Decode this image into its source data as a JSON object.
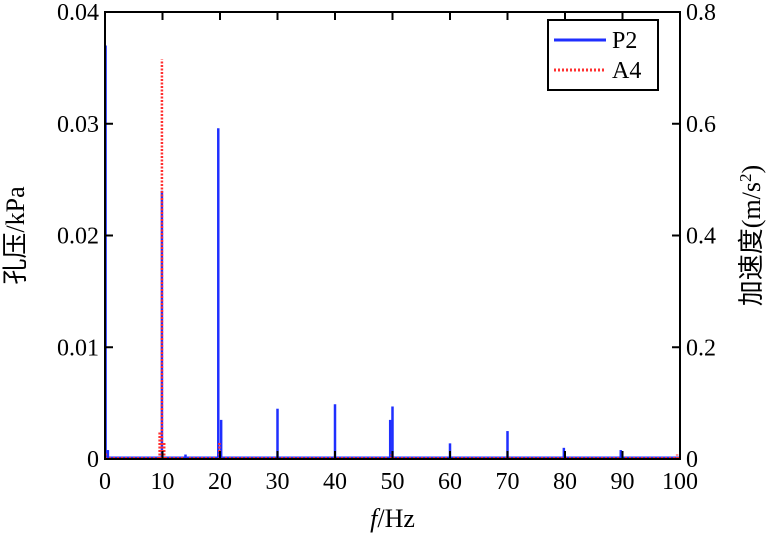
{
  "chart_data": {
    "type": "line",
    "x_axis": {
      "label_italic": "f",
      "label_rest": "/Hz",
      "range": [
        0,
        100
      ],
      "ticks": [
        0,
        10,
        20,
        30,
        40,
        50,
        60,
        70,
        80,
        90,
        100
      ],
      "tick_labels": [
        "0",
        "10",
        "20",
        "30",
        "40",
        "50",
        "60",
        "70",
        "80",
        "90",
        "100"
      ]
    },
    "y_left": {
      "label": "孔压/kPa",
      "range": [
        0,
        0.04
      ],
      "ticks": [
        0,
        0.01,
        0.02,
        0.03,
        0.04
      ],
      "tick_labels": [
        "0",
        "0.01",
        "0.02",
        "0.03",
        "0.04"
      ]
    },
    "y_right": {
      "label_main": "加速度(m/s",
      "label_sup": "2",
      "label_end": ")",
      "range": [
        0,
        0.8
      ],
      "ticks": [
        0,
        0.2,
        0.4,
        0.6,
        0.8
      ],
      "tick_labels": [
        "0",
        "0.2",
        "0.4",
        "0.6",
        "0.8"
      ]
    },
    "legend": {
      "position": "top-right"
    },
    "series": [
      {
        "name": "P2",
        "axis": "left",
        "color": "#1f2fff",
        "style": "solid",
        "peaks": [
          {
            "x": 0.1,
            "y": 0.037
          },
          {
            "x": 0.5,
            "y": 0.0008
          },
          {
            "x": 9.9,
            "y": 0.024
          },
          {
            "x": 14.0,
            "y": 0.0004
          },
          {
            "x": 19.7,
            "y": 0.0296
          },
          {
            "x": 20.2,
            "y": 0.0035
          },
          {
            "x": 30.0,
            "y": 0.0045
          },
          {
            "x": 40.0,
            "y": 0.0049
          },
          {
            "x": 49.6,
            "y": 0.0035
          },
          {
            "x": 50.0,
            "y": 0.0047
          },
          {
            "x": 60.0,
            "y": 0.0014
          },
          {
            "x": 70.0,
            "y": 0.0025
          },
          {
            "x": 79.8,
            "y": 0.001
          },
          {
            "x": 89.7,
            "y": 0.0008
          }
        ]
      },
      {
        "name": "A4",
        "axis": "right",
        "color": "#ff3030",
        "style": "dotted",
        "peaks": [
          {
            "x": 0.1,
            "y": 0.01
          },
          {
            "x": 9.5,
            "y": 0.05
          },
          {
            "x": 9.9,
            "y": 0.715
          },
          {
            "x": 10.3,
            "y": 0.03
          },
          {
            "x": 19.9,
            "y": 0.03
          },
          {
            "x": 30.0,
            "y": 0.005
          },
          {
            "x": 49.8,
            "y": 0.008
          },
          {
            "x": 99.5,
            "y": 0.008
          }
        ]
      }
    ]
  }
}
